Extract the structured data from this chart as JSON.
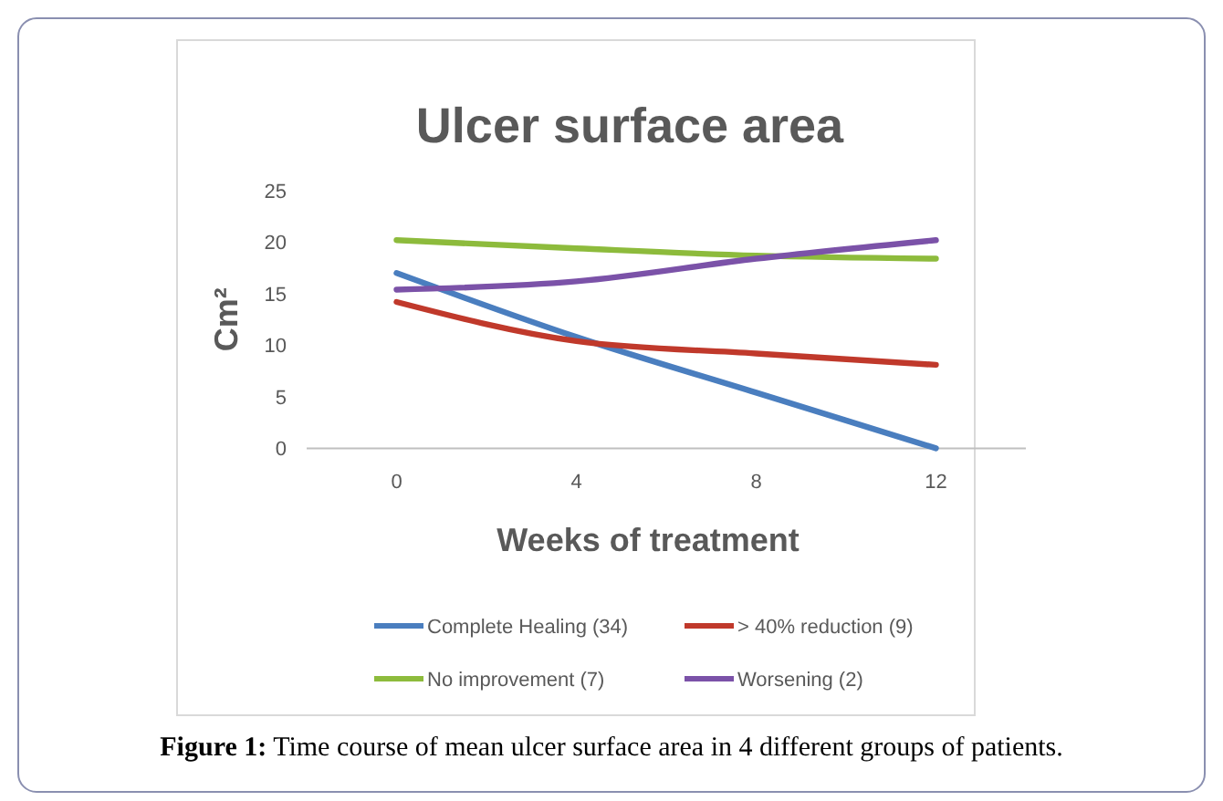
{
  "chart_data": {
    "type": "line",
    "title": "Ulcer surface area",
    "xlabel": "Weeks of treatment",
    "ylabel": "Cm²",
    "categories": [
      "0",
      "4",
      "8",
      "12"
    ],
    "ylim": [
      0,
      25
    ],
    "yticks": [
      0,
      5,
      10,
      15,
      20,
      25
    ],
    "grid": false,
    "legend": "bottom",
    "marker": "none",
    "line_style": "solid",
    "series": [
      {
        "name": "Complete Healing (34)",
        "color": "#4a7ebf",
        "values": [
          17.0,
          10.8,
          5.4,
          0
        ]
      },
      {
        "name": "> 40% reduction (9)",
        "color": "#c0392b",
        "values": [
          14.2,
          10.4,
          9.2,
          8.1
        ]
      },
      {
        "name": "No improvement (7)",
        "color": "#8dbb3c",
        "values": [
          20.2,
          19.4,
          18.7,
          18.4
        ]
      },
      {
        "name": "Worsening (2)",
        "color": "#7b52a8",
        "values": [
          15.4,
          16.2,
          18.4,
          20.2
        ]
      }
    ],
    "annotations": [
      "Figure 1: Time course of mean ulcer surface area in 4 different groups of patients."
    ]
  }
}
